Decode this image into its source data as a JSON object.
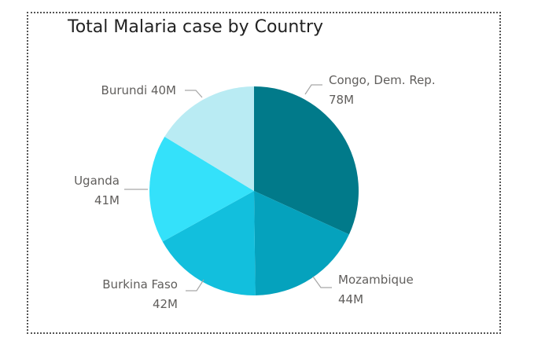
{
  "chart_data": {
    "type": "pie",
    "title": "Total Malaria case by Country",
    "slices": [
      {
        "label": "Congo, Dem. Rep.",
        "value": 78,
        "display": "78M",
        "color": "#017a8a"
      },
      {
        "label": "Mozambique",
        "value": 44,
        "display": "44M",
        "color": "#05a2bd"
      },
      {
        "label": "Burkina Faso",
        "value": 42,
        "display": "42M",
        "color": "#12bfdd"
      },
      {
        "label": "Uganda",
        "value": 41,
        "display": "41M",
        "color": "#34e1fa"
      },
      {
        "label": "Burundi",
        "value": 40,
        "display": "40M",
        "color": "#b9ebf3"
      }
    ],
    "units": "M",
    "legend": "none"
  }
}
